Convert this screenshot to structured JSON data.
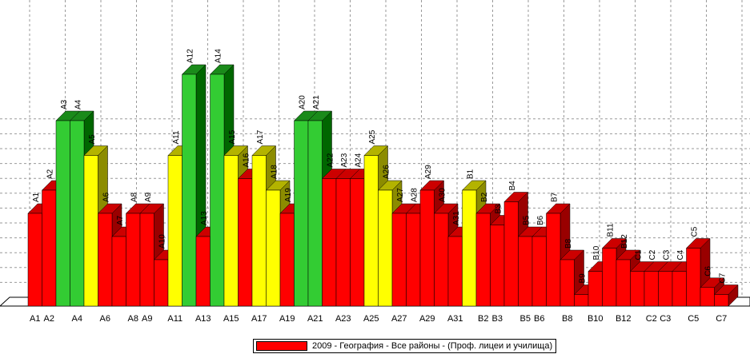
{
  "colors": {
    "red": "#ff0000",
    "yellow": "#ffff00",
    "green": "#33cc33"
  },
  "chart_data": {
    "type": "bar",
    "title": "",
    "xlabel": "",
    "ylabel": "",
    "grid": true,
    "legend": {
      "position": "bottom-center",
      "label": "2009 - География - Все районы - (Проф. лицеи и училища)"
    },
    "categories": [
      "A1",
      "A2",
      "A3",
      "A4",
      "A5",
      "A6",
      "A7",
      "A8",
      "A9",
      "A10",
      "A11",
      "A12",
      "A13",
      "A14",
      "A15",
      "A16",
      "A17",
      "A18",
      "A19",
      "A20",
      "A21",
      "A22",
      "A23",
      "A24",
      "A25",
      "A26",
      "A27",
      "A28",
      "A29",
      "A30",
      "A31",
      "B1",
      "B2",
      "B3",
      "B4",
      "B5",
      "B6",
      "B7",
      "B8",
      "B9",
      "B10",
      "B11",
      "B12",
      "C1",
      "C2",
      "C3",
      "C4",
      "C5",
      "C6",
      "C7"
    ],
    "x_tick_labels": [
      "A1",
      "A2",
      "A4",
      "A6",
      "A8",
      "A9",
      "A11",
      "A13",
      "A15",
      "A17",
      "A19",
      "A21",
      "A23",
      "A25",
      "A27",
      "A29",
      "A31",
      "B2",
      "B3",
      "B5",
      "B6",
      "B8",
      "B10",
      "B12",
      "C2",
      "C3",
      "C5",
      "C7"
    ],
    "values": [
      4,
      5,
      8,
      8,
      6.5,
      4,
      3,
      4,
      4,
      2,
      6.5,
      10,
      3,
      10,
      6.5,
      5.5,
      6.5,
      5,
      4,
      8,
      8,
      5.5,
      5.5,
      5.5,
      6.5,
      5,
      4,
      4,
      5,
      4,
      3,
      5,
      4,
      3.5,
      4.5,
      3,
      3,
      4,
      2,
      0.5,
      1.5,
      2.5,
      2,
      1.5,
      1.5,
      1.5,
      1.5,
      2.5,
      0.8,
      0.5
    ],
    "bar_colors": [
      "red",
      "red",
      "green",
      "green",
      "yellow",
      "red",
      "red",
      "red",
      "red",
      "red",
      "yellow",
      "green",
      "red",
      "green",
      "yellow",
      "red",
      "yellow",
      "yellow",
      "red",
      "green",
      "green",
      "red",
      "red",
      "red",
      "yellow",
      "yellow",
      "red",
      "red",
      "red",
      "red",
      "red",
      "yellow",
      "red",
      "red",
      "red",
      "red",
      "red",
      "red",
      "red",
      "red",
      "red",
      "red",
      "red",
      "red",
      "red",
      "red",
      "red",
      "red",
      "red",
      "red"
    ],
    "ylim": [
      0,
      12
    ]
  }
}
